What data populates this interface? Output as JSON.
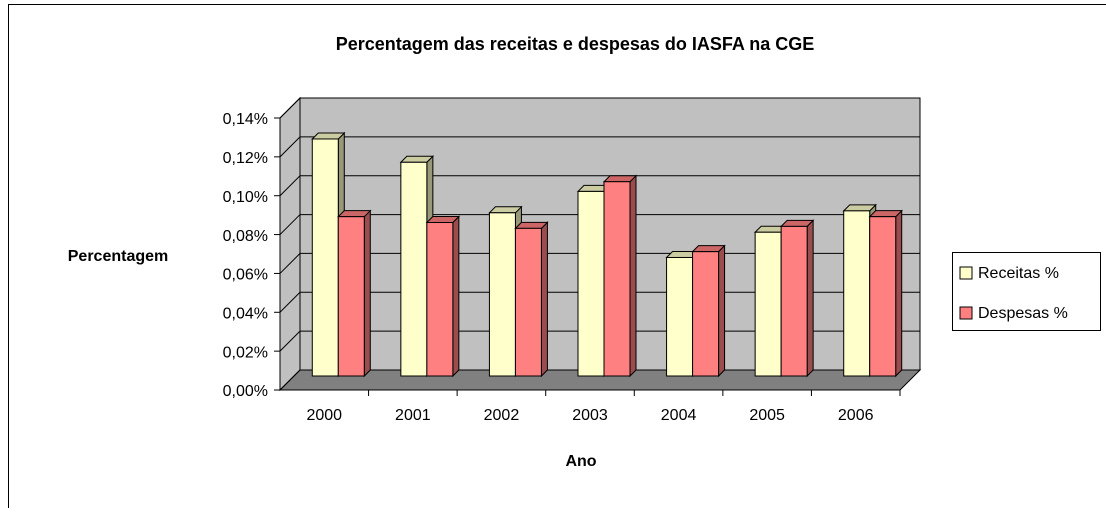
{
  "chart_data": {
    "type": "bar3d",
    "title": "Percentagem das receitas e despesas do IASFA na CGE",
    "x_label": "Ano",
    "y_label": "Percentagem",
    "categories": [
      "2000",
      "2001",
      "2002",
      "2003",
      "2004",
      "2005",
      "2006"
    ],
    "series": [
      {
        "name": "Receitas %",
        "color": "#ffffcc",
        "values": [
          0.122,
          0.11,
          0.084,
          0.095,
          0.061,
          0.074,
          0.085
        ]
      },
      {
        "name": "Despesas %",
        "color": "#ff8080",
        "values": [
          0.082,
          0.079,
          0.076,
          0.1,
          0.064,
          0.077,
          0.082
        ]
      }
    ],
    "ylim": [
      0,
      0.14
    ],
    "yticks": [
      {
        "value": 0,
        "label": "0,00%"
      },
      {
        "value": 0.02,
        "label": "0,02%"
      },
      {
        "value": 0.04,
        "label": "0,04%"
      },
      {
        "value": 0.06,
        "label": "0,06%"
      },
      {
        "value": 0.08,
        "label": "0,08%"
      },
      {
        "value": 0.1,
        "label": "0,10%"
      },
      {
        "value": 0.12,
        "label": "0,12%"
      },
      {
        "value": 0.14,
        "label": "0,14%"
      }
    ],
    "grid": true,
    "legend": "right"
  }
}
